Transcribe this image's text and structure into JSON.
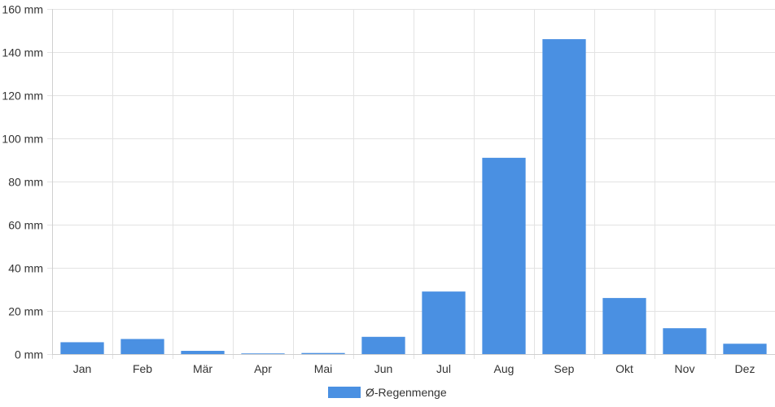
{
  "chart_data": {
    "type": "bar",
    "categories": [
      "Jan",
      "Feb",
      "Mär",
      "Apr",
      "Mai",
      "Jun",
      "Jul",
      "Aug",
      "Sep",
      "Okt",
      "Nov",
      "Dez"
    ],
    "series": [
      {
        "name": "Ø-Regenmenge",
        "values": [
          5.5,
          7,
          1.5,
          0.3,
          0.5,
          8,
          29,
          91,
          146,
          26,
          12,
          4.8
        ]
      }
    ],
    "ylim": [
      0,
      160
    ],
    "yticks": [
      0,
      20,
      40,
      60,
      80,
      100,
      120,
      140,
      160
    ],
    "y_unit": "mm",
    "grid": true,
    "legend_position": "bottom",
    "colors": {
      "bar": "#4a90e2",
      "grid": "#e3e3e3",
      "text": "#333333"
    }
  }
}
